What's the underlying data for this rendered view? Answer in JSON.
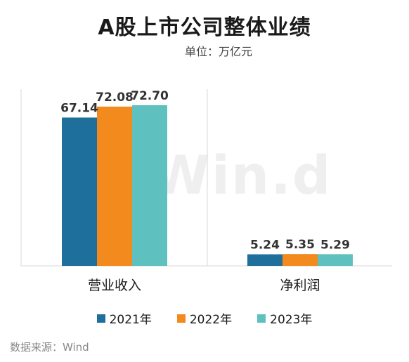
{
  "header": {
    "title": "A股上市公司整体业绩",
    "subtitle": "单位：万亿元"
  },
  "watermark": "Win.d",
  "source": "数据来源：Wind",
  "colors": {
    "2021年": "#1f6f9c",
    "2022年": "#f28a1d",
    "2023年": "#5fc0c0",
    "axis": "#d9d9d9",
    "label": "#333333"
  },
  "chart_data": {
    "type": "bar",
    "title": "A股上市公司整体业绩",
    "unit": "单位：万亿元",
    "categories": [
      "营业收入",
      "净利润"
    ],
    "series": [
      {
        "name": "2021年",
        "values": [
          67.14,
          5.24
        ]
      },
      {
        "name": "2022年",
        "values": [
          72.08,
          5.35
        ]
      },
      {
        "name": "2023年",
        "values": [
          72.7,
          5.29
        ]
      }
    ],
    "value_labels": [
      [
        "67.14",
        "5.24"
      ],
      [
        "72.08",
        "5.35"
      ],
      [
        "72.70",
        "5.29"
      ]
    ],
    "ylim": [
      0,
      72.7
    ],
    "grid": false,
    "legend_position": "bottom"
  }
}
